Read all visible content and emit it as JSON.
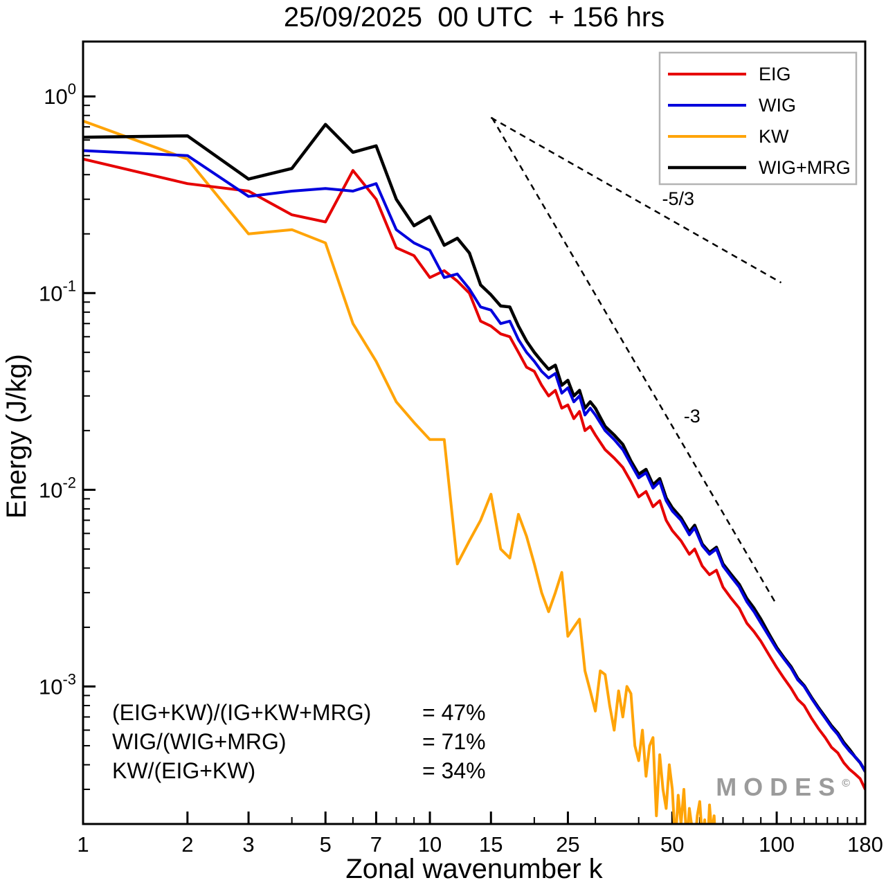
{
  "title": "25/09/2025  00 UTC  + 156 hrs",
  "watermark": "MODES",
  "watermark_sup": "©",
  "annotations": {
    "rows": [
      {
        "label": "(EIG+KW)/(IG+KW+MRG)",
        "value": "= 47%"
      },
      {
        "label": "WIG/(WIG+MRG)",
        "value": "= 71%"
      },
      {
        "label": "KW/(EIG+KW)",
        "value": "= 34%"
      }
    ]
  },
  "chart_data": {
    "type": "line",
    "title": "25/09/2025  00 UTC  + 156 hrs",
    "xlabel": "Zonal wavenumber k",
    "ylabel": "Energy (J/kg)",
    "xscale": "log",
    "yscale": "log",
    "xlim": [
      1,
      180
    ],
    "ylim": [
      0.0002,
      1.9
    ],
    "x_ticks": [
      1,
      2,
      3,
      5,
      7,
      10,
      15,
      25,
      50,
      100,
      180
    ],
    "y_tick_exponents": [
      0,
      -1,
      -2,
      -3
    ],
    "grid": false,
    "legend": {
      "position": "top-right",
      "entries": [
        {
          "label": "EIG",
          "color": "#e60000"
        },
        {
          "label": "WIG",
          "color": "#0000dd"
        },
        {
          "label": "KW",
          "color": "#ffa408"
        },
        {
          "label": "WIG+MRG",
          "color": "#000000"
        }
      ]
    },
    "series": [
      {
        "name": "EIG",
        "color": "#e60000",
        "width": 4,
        "points": [
          [
            1,
            0.48
          ],
          [
            2,
            0.36
          ],
          [
            3,
            0.33
          ],
          [
            4,
            0.25
          ],
          [
            5,
            0.23
          ],
          [
            6,
            0.42
          ],
          [
            7,
            0.3
          ],
          [
            8,
            0.17
          ],
          [
            9,
            0.155
          ],
          [
            10,
            0.12
          ],
          [
            11,
            0.13
          ],
          [
            12,
            0.115
          ],
          [
            13,
            0.1
          ],
          [
            14,
            0.072
          ],
          [
            15,
            0.068
          ],
          [
            16,
            0.062
          ],
          [
            17,
            0.06
          ],
          [
            18,
            0.05
          ],
          [
            19,
            0.042
          ],
          [
            20,
            0.04
          ],
          [
            21,
            0.034
          ],
          [
            22,
            0.03
          ],
          [
            23,
            0.032
          ],
          [
            24,
            0.026
          ],
          [
            25,
            0.027
          ],
          [
            26,
            0.023
          ],
          [
            27,
            0.025
          ],
          [
            28,
            0.02
          ],
          [
            29,
            0.021
          ],
          [
            30,
            0.019
          ],
          [
            32,
            0.016
          ],
          [
            34,
            0.0145
          ],
          [
            36,
            0.013
          ],
          [
            38,
            0.011
          ],
          [
            40,
            0.0092
          ],
          [
            42,
            0.0098
          ],
          [
            44,
            0.0082
          ],
          [
            46,
            0.0088
          ],
          [
            48,
            0.007
          ],
          [
            50,
            0.0062
          ],
          [
            53,
            0.0055
          ],
          [
            56,
            0.0047
          ],
          [
            58,
            0.005
          ],
          [
            61,
            0.0041
          ],
          [
            64,
            0.0037
          ],
          [
            67,
            0.0039
          ],
          [
            70,
            0.0032
          ],
          [
            74,
            0.0028
          ],
          [
            78,
            0.0025
          ],
          [
            82,
            0.0021
          ],
          [
            86,
            0.0019
          ],
          [
            90,
            0.0017
          ],
          [
            95,
            0.00145
          ],
          [
            100,
            0.00125
          ],
          [
            105,
            0.0011
          ],
          [
            110,
            0.00098
          ],
          [
            115,
            0.00086
          ],
          [
            120,
            0.0008
          ],
          [
            126,
            0.00069
          ],
          [
            132,
            0.00061
          ],
          [
            138,
            0.00055
          ],
          [
            144,
            0.00049
          ],
          [
            150,
            0.00046
          ],
          [
            156,
            0.00041
          ],
          [
            162,
            0.00038
          ],
          [
            168,
            0.00036
          ],
          [
            174,
            0.00034
          ],
          [
            180,
            0.0003
          ]
        ]
      },
      {
        "name": "WIG",
        "color": "#0000dd",
        "width": 4,
        "points": [
          [
            1,
            0.53
          ],
          [
            2,
            0.5
          ],
          [
            3,
            0.31
          ],
          [
            4,
            0.33
          ],
          [
            5,
            0.34
          ],
          [
            6,
            0.33
          ],
          [
            7,
            0.36
          ],
          [
            8,
            0.21
          ],
          [
            9,
            0.18
          ],
          [
            10,
            0.165
          ],
          [
            11,
            0.12
          ],
          [
            12,
            0.125
          ],
          [
            13,
            0.105
          ],
          [
            14,
            0.085
          ],
          [
            15,
            0.082
          ],
          [
            16,
            0.07
          ],
          [
            17,
            0.072
          ],
          [
            18,
            0.058
          ],
          [
            19,
            0.05
          ],
          [
            20,
            0.045
          ],
          [
            21,
            0.04
          ],
          [
            22,
            0.037
          ],
          [
            23,
            0.039
          ],
          [
            24,
            0.031
          ],
          [
            25,
            0.033
          ],
          [
            26,
            0.028
          ],
          [
            27,
            0.03
          ],
          [
            28,
            0.024
          ],
          [
            29,
            0.026
          ],
          [
            30,
            0.024
          ],
          [
            32,
            0.02
          ],
          [
            34,
            0.018
          ],
          [
            36,
            0.016
          ],
          [
            38,
            0.0135
          ],
          [
            40,
            0.0115
          ],
          [
            42,
            0.0122
          ],
          [
            44,
            0.0102
          ],
          [
            46,
            0.011
          ],
          [
            48,
            0.0088
          ],
          [
            50,
            0.0078
          ],
          [
            53,
            0.007
          ],
          [
            56,
            0.0059
          ],
          [
            58,
            0.0064
          ],
          [
            61,
            0.0052
          ],
          [
            64,
            0.0047
          ],
          [
            67,
            0.005
          ],
          [
            70,
            0.0041
          ],
          [
            74,
            0.0036
          ],
          [
            78,
            0.0032
          ],
          [
            82,
            0.0027
          ],
          [
            86,
            0.0024
          ],
          [
            90,
            0.0021
          ],
          [
            95,
            0.0018
          ],
          [
            100,
            0.00155
          ],
          [
            105,
            0.00138
          ],
          [
            110,
            0.00124
          ],
          [
            115,
            0.00108
          ],
          [
            120,
            0.001
          ],
          [
            126,
            0.00087
          ],
          [
            132,
            0.00077
          ],
          [
            138,
            0.00069
          ],
          [
            144,
            0.00062
          ],
          [
            150,
            0.00057
          ],
          [
            156,
            0.00051
          ],
          [
            162,
            0.00047
          ],
          [
            168,
            0.00044
          ],
          [
            174,
            0.00041
          ],
          [
            180,
            0.00037
          ]
        ]
      },
      {
        "name": "KW",
        "color": "#ffa408",
        "width": 4,
        "points": [
          [
            1,
            0.75
          ],
          [
            2,
            0.48
          ],
          [
            3,
            0.2
          ],
          [
            4,
            0.21
          ],
          [
            5,
            0.18
          ],
          [
            6,
            0.07
          ],
          [
            7,
            0.045
          ],
          [
            8,
            0.028
          ],
          [
            9,
            0.022
          ],
          [
            10,
            0.018
          ],
          [
            11,
            0.018
          ],
          [
            12,
            0.0042
          ],
          [
            13,
            0.0055
          ],
          [
            14,
            0.007
          ],
          [
            15,
            0.0095
          ],
          [
            16,
            0.005
          ],
          [
            17,
            0.0045
          ],
          [
            18,
            0.0075
          ],
          [
            19,
            0.0058
          ],
          [
            20,
            0.0042
          ],
          [
            21,
            0.003
          ],
          [
            22,
            0.0024
          ],
          [
            23,
            0.003
          ],
          [
            24,
            0.0038
          ],
          [
            25,
            0.0018
          ],
          [
            26,
            0.002
          ],
          [
            27,
            0.0022
          ],
          [
            28,
            0.0012
          ],
          [
            29,
            0.00095
          ],
          [
            30,
            0.00075
          ],
          [
            31,
            0.0012
          ],
          [
            32,
            0.00115
          ],
          [
            33,
            0.0008
          ],
          [
            34,
            0.0006
          ],
          [
            35,
            0.00095
          ],
          [
            36,
            0.0007
          ],
          [
            37,
            0.001
          ],
          [
            38,
            0.00092
          ],
          [
            39,
            0.0005
          ],
          [
            40,
            0.00042
          ],
          [
            41,
            0.0006
          ],
          [
            42,
            0.00035
          ],
          [
            43,
            0.0005
          ],
          [
            44,
            0.00055
          ],
          [
            45,
            0.00022
          ],
          [
            46,
            0.00045
          ],
          [
            47,
            0.0003
          ],
          [
            48,
            0.00024
          ],
          [
            49,
            0.0004
          ],
          [
            50,
            0.0003
          ],
          [
            51,
            0.00016
          ],
          [
            52,
            0.00028
          ],
          [
            53,
            0.0002
          ],
          [
            54,
            0.0003
          ],
          [
            55,
            0.00016
          ],
          [
            56,
            0.00024
          ],
          [
            57,
            0.00019
          ],
          [
            58,
            0.00015
          ],
          [
            59,
            0.00022
          ],
          [
            60,
            0.00026
          ],
          [
            61,
            0.00017
          ],
          [
            62,
            0.00021
          ],
          [
            63,
            0.00014
          ],
          [
            64,
            0.00025
          ],
          [
            65,
            0.00018
          ],
          [
            66,
            0.00022
          ],
          [
            67,
            0.00013
          ],
          [
            68,
            0.00019
          ]
        ]
      },
      {
        "name": "WIG+MRG",
        "color": "#000000",
        "width": 4.5,
        "points": [
          [
            1,
            0.62
          ],
          [
            2,
            0.63
          ],
          [
            3,
            0.38
          ],
          [
            4,
            0.43
          ],
          [
            5,
            0.72
          ],
          [
            6,
            0.52
          ],
          [
            7,
            0.56
          ],
          [
            8,
            0.3
          ],
          [
            9,
            0.22
          ],
          [
            10,
            0.245
          ],
          [
            11,
            0.175
          ],
          [
            12,
            0.19
          ],
          [
            13,
            0.16
          ],
          [
            14,
            0.11
          ],
          [
            15,
            0.098
          ],
          [
            16,
            0.086
          ],
          [
            17,
            0.085
          ],
          [
            18,
            0.068
          ],
          [
            19,
            0.057
          ],
          [
            20,
            0.05
          ],
          [
            21,
            0.045
          ],
          [
            22,
            0.041
          ],
          [
            23,
            0.043
          ],
          [
            24,
            0.034
          ],
          [
            25,
            0.036
          ],
          [
            26,
            0.03
          ],
          [
            27,
            0.032
          ],
          [
            28,
            0.026
          ],
          [
            29,
            0.028
          ],
          [
            30,
            0.026
          ],
          [
            32,
            0.021
          ],
          [
            34,
            0.019
          ],
          [
            36,
            0.017
          ],
          [
            38,
            0.014
          ],
          [
            40,
            0.012
          ],
          [
            42,
            0.0127
          ],
          [
            44,
            0.0106
          ],
          [
            46,
            0.0114
          ],
          [
            48,
            0.0091
          ],
          [
            50,
            0.0081
          ],
          [
            53,
            0.0072
          ],
          [
            56,
            0.0061
          ],
          [
            58,
            0.0066
          ],
          [
            61,
            0.0053
          ],
          [
            64,
            0.0048
          ],
          [
            67,
            0.0051
          ],
          [
            70,
            0.0042
          ],
          [
            74,
            0.0037
          ],
          [
            78,
            0.0033
          ],
          [
            82,
            0.0028
          ],
          [
            86,
            0.0025
          ],
          [
            90,
            0.0022
          ],
          [
            95,
            0.00185
          ],
          [
            100,
            0.00158
          ],
          [
            105,
            0.0014
          ],
          [
            110,
            0.00126
          ],
          [
            115,
            0.0011
          ],
          [
            120,
            0.00101
          ],
          [
            126,
            0.00088
          ],
          [
            132,
            0.00078
          ],
          [
            138,
            0.0007
          ],
          [
            144,
            0.00063
          ],
          [
            150,
            0.00058
          ],
          [
            156,
            0.00052
          ],
          [
            162,
            0.00048
          ],
          [
            168,
            0.00044
          ],
          [
            174,
            0.00041
          ],
          [
            180,
            0.00037
          ]
        ]
      }
    ],
    "reference_lines": [
      {
        "label": "-5/3",
        "x": [
          15,
          103
        ],
        "y": [
          0.78,
          0.113
        ],
        "label_pos": [
          52,
          0.28
        ]
      },
      {
        "label": "-3",
        "x": [
          15.1,
          100
        ],
        "y": [
          0.78,
          0.0026
        ],
        "label_pos": [
          57,
          0.022
        ]
      }
    ]
  }
}
